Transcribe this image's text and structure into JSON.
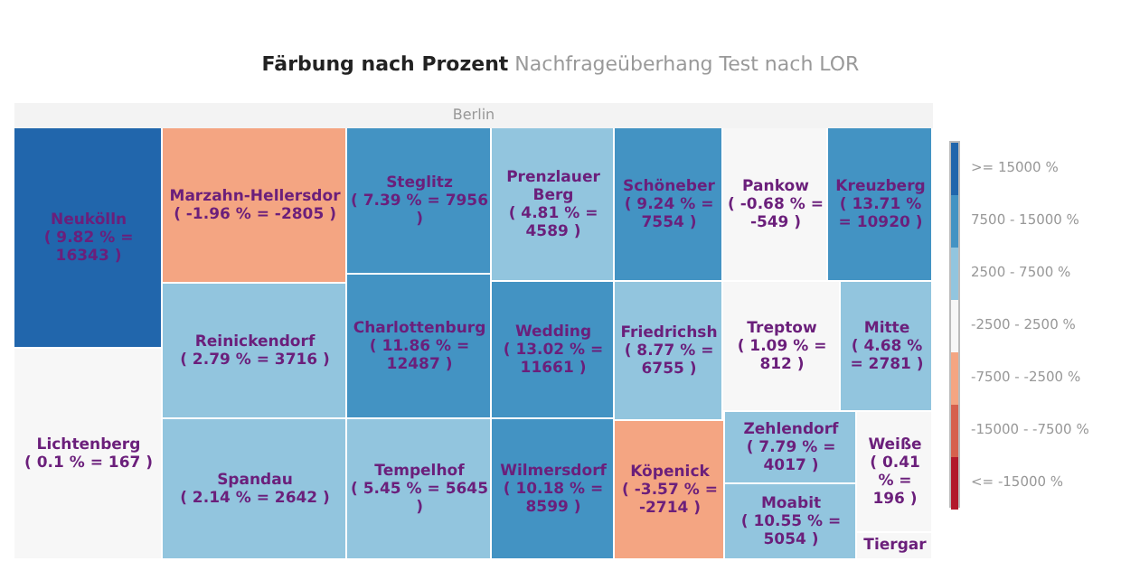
{
  "chart_data": {
    "type": "other",
    "title": "Färbung nach Prozent",
    "subtitle": "Nachfrageüberhang Test nach LOR",
    "annotations": [
      "Berlin",
      ">= 15000 %",
      "7500 - 15000 %",
      "2500 - 7500 %",
      "-2500 - 2500 %",
      "-7500 - -2500 %",
      "-15000 - -7500 %",
      "<= -15000 %"
    ],
    "categories": [
      "Neukölln",
      "Lichtenberg",
      "Marzahn-Hellersdor",
      "Reinickendorf",
      "Spandau",
      "Steglitz",
      "Charlottenburg",
      "Tempelhof",
      "Prenzlauer Berg",
      "Wedding",
      "Wilmersdorf",
      "Schöneber",
      "Friedrichsh",
      "Köpenick",
      "Pankow",
      "Treptow",
      "Kreuzberg",
      "Mitte",
      "Zehlendorf",
      "Moabit",
      "Weiße",
      "Tiergar"
    ],
    "values": [
      16343,
      167,
      -2805,
      3716,
      2642,
      7956,
      12487,
      5645,
      4589,
      11661,
      8599,
      7554,
      6755,
      -2714,
      -549,
      812,
      10920,
      2781,
      4017,
      5054,
      196,
      null
    ],
    "value_labels": [
      "( 9.82 % = 16343 )",
      "( 0.1 % = 167 )",
      "( -1.96 % = -2805 )",
      "( 2.79 % = 3716 )",
      "( 2.14 % = 2642 )",
      "( 7.39 % = 7956 )",
      "( 11.86 % = 12487 )",
      "( 5.45 % = 5645 )",
      "( 4.81 % = 4589 )",
      "( 13.02 % = 11661 )",
      "( 10.18 % = 8599 )",
      "( 9.24 % = 7554 )",
      "( 8.77 % = 6755 )",
      "( -3.57 % = -2714 )",
      "( -0.68 % = -549 )",
      "( 1.09 % = 812 )",
      "( 13.71 % = 10920 )",
      "( 4.68 % = 2781 )",
      "( 7.79 % = 4017 )",
      "( 10.55 % = 5054 )",
      "( 0.41 % = 196 )",
      null
    ],
    "colors": [
      "#2166ac",
      "#f7f7f7",
      "#f4a582",
      "#92c5de",
      "#92c5de",
      "#4393c3",
      "#4393c3",
      "#92c5de",
      "#92c5de",
      "#4393c3",
      "#4393c3",
      "#4393c3",
      "#92c5de",
      "#f4a582",
      "#f7f7f7",
      "#f7f7f7",
      "#4393c3",
      "#92c5de",
      "#92c5de",
      "#92c5de",
      "#f7f7f7",
      "#f7f7f7"
    ]
  }
}
